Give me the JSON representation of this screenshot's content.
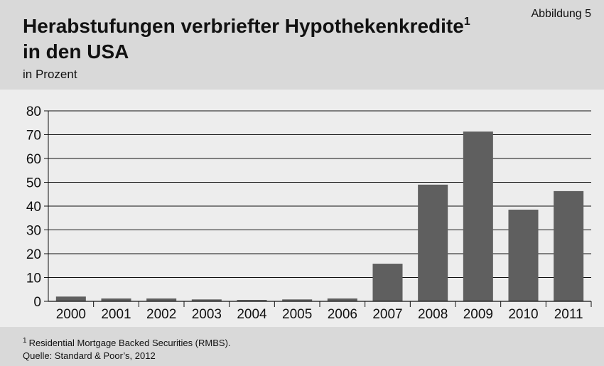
{
  "chart_data": {
    "type": "bar",
    "title": [
      "Herabstufungen verbriefter Hypothekenkredite",
      "in den USA"
    ],
    "title_footnote_mark": "1",
    "figure_label": "Abbildung 5",
    "subtitle": "in Prozent",
    "categories": [
      "2000",
      "2001",
      "2002",
      "2003",
      "2004",
      "2005",
      "2006",
      "2007",
      "2008",
      "2009",
      "2010",
      "2011"
    ],
    "values": [
      2,
      1.2,
      1.2,
      0.8,
      0.6,
      0.8,
      1.2,
      15.8,
      49,
      71.3,
      38.5,
      46.3
    ],
    "color": "#5f5f5f",
    "ylim": [
      0,
      80
    ],
    "yticks": [
      0,
      10,
      20,
      30,
      40,
      50,
      60,
      70,
      80
    ],
    "grid": true,
    "footnotes": [
      {
        "mark": "1",
        "text": "Residential Mortgage Backed Securities (RMBS)."
      }
    ],
    "source": "Quelle: Standard & Poor’s, 2012"
  }
}
